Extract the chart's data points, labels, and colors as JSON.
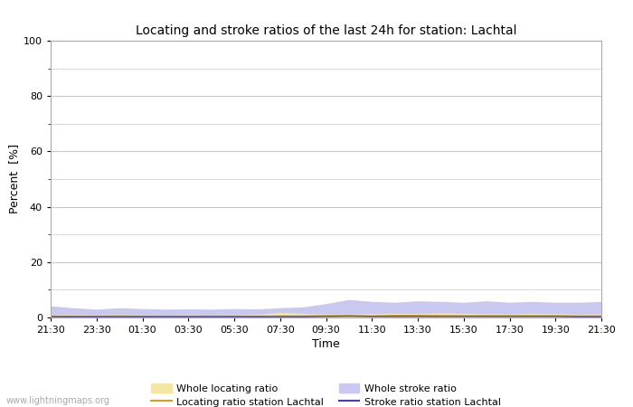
{
  "title": "Locating and stroke ratios of the last 24h for station: Lachtal",
  "xlabel": "Time",
  "ylabel": "Percent  [%]",
  "ylim": [
    0,
    100
  ],
  "yticks": [
    0,
    20,
    40,
    60,
    80,
    100
  ],
  "yticks_minor": [
    10,
    30,
    50,
    70,
    90
  ],
  "time_labels": [
    "21:30",
    "23:30",
    "01:30",
    "03:30",
    "05:30",
    "07:30",
    "09:30",
    "11:30",
    "13:30",
    "15:30",
    "17:30",
    "19:30",
    "21:30"
  ],
  "background_color": "#ffffff",
  "plot_bg_color": "#ffffff",
  "grid_color": "#c8c8c8",
  "watermark": "www.lightningmaps.org",
  "whole_locating_color": "#f5e6a3",
  "whole_stroke_color": "#c8c8f0",
  "locating_line_color": "#d4a020",
  "stroke_line_color": "#4040c0",
  "whole_locating_data": [
    1.2,
    1.1,
    1.0,
    1.1,
    1.0,
    0.9,
    1.0,
    0.9,
    1.0,
    1.1,
    1.8,
    1.5,
    1.3,
    1.2,
    1.4,
    1.6,
    1.5,
    1.7,
    1.5,
    1.4,
    1.3,
    1.5,
    1.4,
    1.2,
    1.3
  ],
  "whole_stroke_data": [
    4.2,
    3.5,
    3.0,
    3.5,
    3.2,
    3.0,
    3.1,
    3.0,
    3.2,
    3.1,
    3.5,
    3.8,
    5.0,
    6.5,
    5.8,
    5.5,
    6.0,
    5.8,
    5.5,
    6.0,
    5.5,
    5.8,
    5.5,
    5.5,
    5.8
  ],
  "locating_station_data": [
    0.5,
    0.4,
    0.4,
    0.5,
    0.4,
    0.4,
    0.4,
    0.4,
    0.4,
    0.4,
    0.5,
    0.5,
    0.6,
    0.6,
    0.5,
    0.7,
    0.7,
    0.6,
    0.6,
    0.6,
    0.6,
    0.6,
    0.6,
    0.5,
    0.5
  ],
  "stroke_station_data": [
    0.3,
    0.3,
    0.3,
    0.3,
    0.3,
    0.3,
    0.3,
    0.3,
    0.3,
    0.3,
    0.3,
    0.3,
    0.4,
    0.5,
    0.4,
    0.4,
    0.4,
    0.4,
    0.4,
    0.4,
    0.4,
    0.4,
    0.4,
    0.3,
    0.3
  ],
  "n_points": 25
}
